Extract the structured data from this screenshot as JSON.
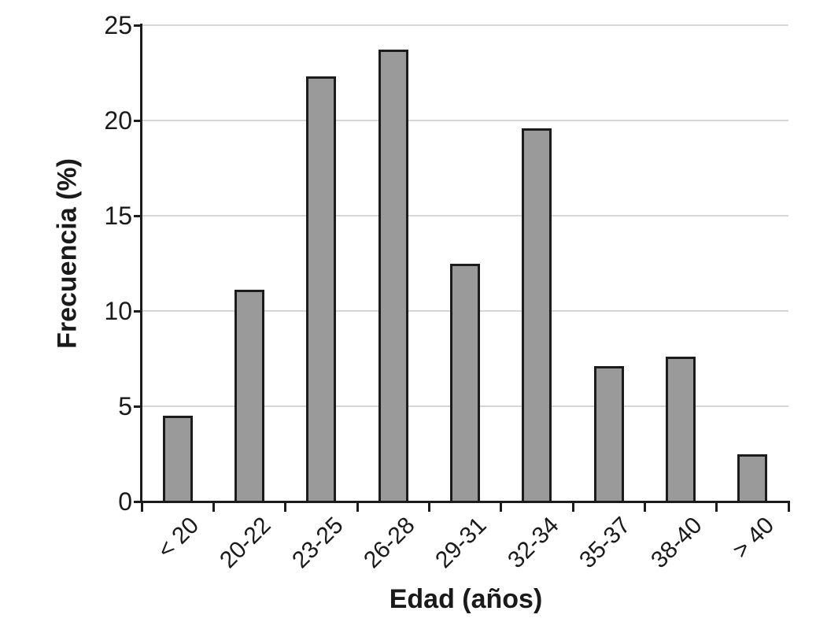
{
  "chart_data": {
    "type": "bar",
    "title": "",
    "categories": [
      "< 20",
      "20-22",
      "23-25",
      "26-28",
      "29-31",
      "32-34",
      "35-37",
      "38-40",
      "> 40"
    ],
    "values": [
      4.5,
      11.1,
      22.3,
      23.7,
      12.5,
      19.6,
      7.1,
      7.6,
      2.5
    ],
    "xlabel": "Edad (años)",
    "ylabel": "Frecuencia (%)",
    "ylim": [
      0,
      25
    ],
    "yticks": [
      0,
      5,
      10,
      15,
      20,
      25
    ],
    "grid": "horizontal gridlines at each y tick, drawn behind bars",
    "legend": "none",
    "colors": {
      "bar_fill": "#9a9a9a",
      "bar_border": "#1c1c1c",
      "axis": "#1c1c1c",
      "gridline": "#d6d6d6",
      "text": "#1a1a1a",
      "background": "#ffffff"
    }
  }
}
